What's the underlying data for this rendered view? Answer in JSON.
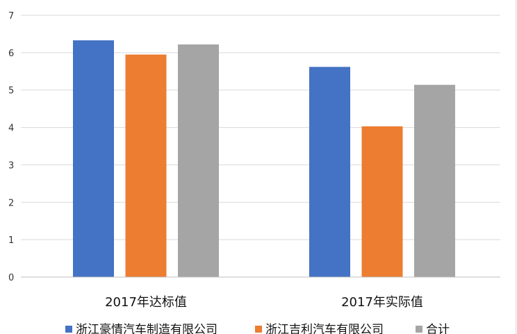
{
  "chart_data": {
    "type": "bar",
    "title": "",
    "xlabel": "",
    "ylabel": "",
    "ylim": [
      0,
      7
    ],
    "yticks": [
      "0",
      "1",
      "2",
      "3",
      "4",
      "5",
      "6",
      "7"
    ],
    "grid": true,
    "legend_position": "bottom",
    "categories": [
      "2017年达标值",
      "2017年实际值"
    ],
    "series": [
      {
        "name": "浙江豪情汽车制造有限公司",
        "color": "#4472c4",
        "values": [
          6.33,
          5.62
        ]
      },
      {
        "name": "浙江吉利汽车有限公司",
        "color": "#ed7d31",
        "values": [
          5.95,
          4.03
        ]
      },
      {
        "name": "合计",
        "color": "#a5a5a5",
        "values": [
          6.22,
          5.14
        ]
      }
    ]
  }
}
